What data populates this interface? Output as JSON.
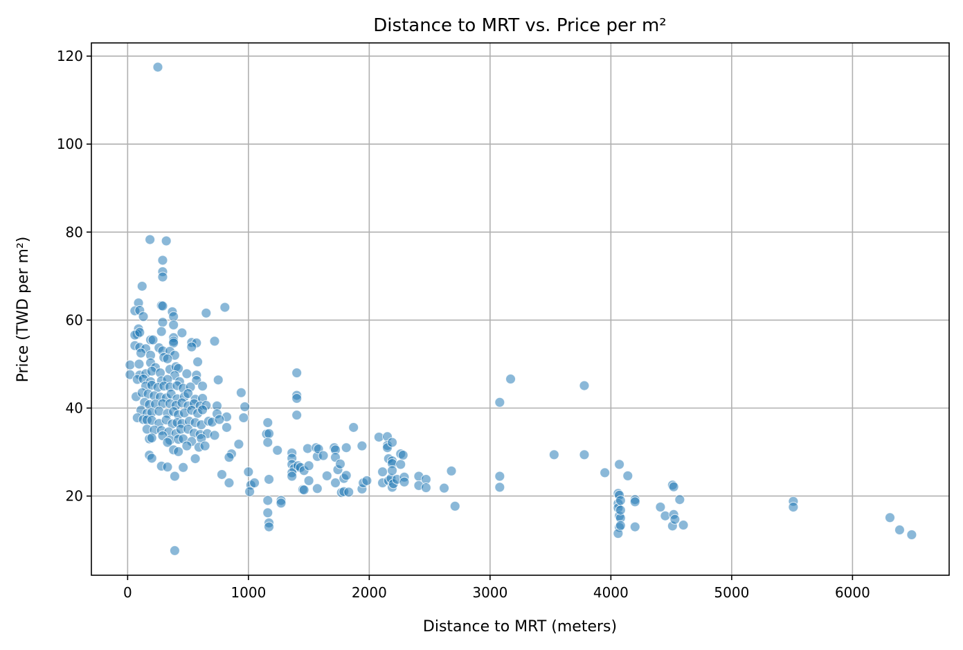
{
  "chart_data": {
    "type": "scatter",
    "title": "Distance to MRT vs. Price per m²",
    "xlabel": "Distance to MRT (meters)",
    "ylabel": "Price (TWD per m²)",
    "xlim": [
      -300,
      6800
    ],
    "ylim": [
      2,
      123
    ],
    "xticks": [
      0,
      1000,
      2000,
      3000,
      4000,
      5000,
      6000
    ],
    "yticks": [
      20,
      40,
      60,
      80,
      100,
      120
    ],
    "grid": true,
    "legend": "none",
    "colors": {
      "point": "#1f77b4",
      "grid": "#b0b0b0",
      "axis": "#000000"
    },
    "points": [
      [
        250,
        117.5
      ],
      [
        390,
        7.6
      ],
      [
        185,
        78.3
      ],
      [
        320,
        78.0
      ],
      [
        290,
        73.6
      ],
      [
        290,
        71.0
      ],
      [
        290,
        69.8
      ],
      [
        120,
        67.7
      ],
      [
        280,
        63.3
      ],
      [
        290,
        63.2
      ],
      [
        90,
        63.9
      ],
      [
        60,
        62.1
      ],
      [
        100,
        62.2
      ],
      [
        370,
        61.9
      ],
      [
        380,
        60.8
      ],
      [
        650,
        61.6
      ],
      [
        805,
        62.9
      ],
      [
        130,
        60.8
      ],
      [
        290,
        59.5
      ],
      [
        380,
        58.9
      ],
      [
        90,
        58.0
      ],
      [
        80,
        56.8
      ],
      [
        60,
        56.6
      ],
      [
        100,
        57.2
      ],
      [
        280,
        57.4
      ],
      [
        450,
        57.1
      ],
      [
        380,
        56.0
      ],
      [
        190,
        55.5
      ],
      [
        210,
        55.5
      ],
      [
        380,
        55.2
      ],
      [
        380,
        54.8
      ],
      [
        530,
        54.9
      ],
      [
        570,
        54.8
      ],
      [
        720,
        55.2
      ],
      [
        60,
        54.2
      ],
      [
        100,
        53.8
      ],
      [
        150,
        53.5
      ],
      [
        260,
        53.7
      ],
      [
        290,
        53.0
      ],
      [
        350,
        52.9
      ],
      [
        530,
        53.9
      ],
      [
        390,
        52.0
      ],
      [
        110,
        52.5
      ],
      [
        190,
        52.0
      ],
      [
        300,
        51.5
      ],
      [
        330,
        51.2
      ],
      [
        20,
        49.8
      ],
      [
        190,
        50.3
      ],
      [
        95,
        50.0
      ],
      [
        230,
        49.2
      ],
      [
        350,
        48.8
      ],
      [
        400,
        49.4
      ],
      [
        420,
        49.0
      ],
      [
        580,
        50.5
      ],
      [
        20,
        47.6
      ],
      [
        100,
        47.5
      ],
      [
        150,
        47.8
      ],
      [
        200,
        48.4
      ],
      [
        270,
        48.0
      ],
      [
        390,
        47.4
      ],
      [
        490,
        47.8
      ],
      [
        570,
        47.5
      ],
      [
        80,
        46.5
      ],
      [
        130,
        46.6
      ],
      [
        190,
        46.0
      ],
      [
        280,
        46.2
      ],
      [
        330,
        46.5
      ],
      [
        430,
        46.0
      ],
      [
        570,
        46.3
      ],
      [
        750,
        46.4
      ],
      [
        150,
        45.0
      ],
      [
        200,
        45.2
      ],
      [
        250,
        44.7
      ],
      [
        300,
        45.0
      ],
      [
        350,
        44.8
      ],
      [
        410,
        45.1
      ],
      [
        460,
        44.5
      ],
      [
        520,
        44.8
      ],
      [
        620,
        45.0
      ],
      [
        70,
        42.6
      ],
      [
        120,
        43.5
      ],
      [
        170,
        43.2
      ],
      [
        220,
        42.8
      ],
      [
        270,
        42.5
      ],
      [
        320,
        42.3
      ],
      [
        360,
        43.2
      ],
      [
        410,
        42.1
      ],
      [
        470,
        42.6
      ],
      [
        500,
        43.3
      ],
      [
        560,
        42.0
      ],
      [
        620,
        42.2
      ],
      [
        940,
        43.5
      ],
      [
        1400,
        42.9
      ],
      [
        1400,
        42.2
      ],
      [
        140,
        41.3
      ],
      [
        180,
        40.8
      ],
      [
        230,
        40.9
      ],
      [
        290,
        41.0
      ],
      [
        350,
        41.0
      ],
      [
        400,
        40.6
      ],
      [
        450,
        41.2
      ],
      [
        500,
        40.5
      ],
      [
        550,
        41.0
      ],
      [
        600,
        40.5
      ],
      [
        650,
        40.6
      ],
      [
        740,
        40.5
      ],
      [
        970,
        40.3
      ],
      [
        110,
        39.5
      ],
      [
        160,
        38.8
      ],
      [
        200,
        39.0
      ],
      [
        260,
        39.3
      ],
      [
        330,
        38.8
      ],
      [
        380,
        39.2
      ],
      [
        420,
        38.5
      ],
      [
        470,
        38.9
      ],
      [
        530,
        39.5
      ],
      [
        580,
        38.8
      ],
      [
        620,
        39.6
      ],
      [
        740,
        38.7
      ],
      [
        820,
        38.0
      ],
      [
        960,
        37.8
      ],
      [
        1400,
        38.4
      ],
      [
        80,
        37.8
      ],
      [
        130,
        37.4
      ],
      [
        160,
        37.3
      ],
      [
        200,
        37.2
      ],
      [
        260,
        36.5
      ],
      [
        320,
        37.3
      ],
      [
        370,
        36.4
      ],
      [
        410,
        36.7
      ],
      [
        450,
        36.5
      ],
      [
        510,
        37.0
      ],
      [
        560,
        36.7
      ],
      [
        610,
        36.2
      ],
      [
        670,
        37.0
      ],
      [
        700,
        36.8
      ],
      [
        760,
        37.4
      ],
      [
        820,
        35.6
      ],
      [
        1160,
        36.7
      ],
      [
        160,
        35.2
      ],
      [
        220,
        35.0
      ],
      [
        280,
        34.9
      ],
      [
        340,
        34.6
      ],
      [
        400,
        34.2
      ],
      [
        440,
        35.2
      ],
      [
        500,
        35.2
      ],
      [
        550,
        34.3
      ],
      [
        600,
        34.0
      ],
      [
        660,
        34.2
      ],
      [
        720,
        33.8
      ],
      [
        1150,
        34.1
      ],
      [
        1170,
        34.2
      ],
      [
        180,
        33.0
      ],
      [
        200,
        33.2
      ],
      [
        290,
        33.7
      ],
      [
        350,
        32.7
      ],
      [
        420,
        32.9
      ],
      [
        460,
        33.0
      ],
      [
        530,
        32.4
      ],
      [
        610,
        33.1
      ],
      [
        920,
        31.8
      ],
      [
        1160,
        32.2
      ],
      [
        330,
        32.2
      ],
      [
        380,
        30.5
      ],
      [
        420,
        30.1
      ],
      [
        490,
        31.4
      ],
      [
        590,
        31.1
      ],
      [
        640,
        31.4
      ],
      [
        860,
        29.6
      ],
      [
        1240,
        30.4
      ],
      [
        180,
        29.3
      ],
      [
        200,
        28.6
      ],
      [
        560,
        28.5
      ],
      [
        840,
        28.8
      ],
      [
        280,
        26.8
      ],
      [
        330,
        26.6
      ],
      [
        460,
        26.5
      ],
      [
        780,
        24.9
      ],
      [
        390,
        24.5
      ],
      [
        840,
        23.0
      ],
      [
        1000,
        25.5
      ],
      [
        1020,
        22.5
      ],
      [
        1050,
        23.0
      ],
      [
        1010,
        21.0
      ],
      [
        1170,
        23.8
      ],
      [
        1160,
        19.0
      ],
      [
        1160,
        16.2
      ],
      [
        1170,
        13.9
      ],
      [
        1170,
        13.0
      ],
      [
        1270,
        19.0
      ],
      [
        1270,
        18.4
      ],
      [
        1400,
        48.0
      ],
      [
        1360,
        29.8
      ],
      [
        1360,
        28.6
      ],
      [
        1360,
        27.2
      ],
      [
        1380,
        26.3
      ],
      [
        1360,
        25.3
      ],
      [
        1360,
        24.5
      ],
      [
        1410,
        26.9
      ],
      [
        1430,
        26.5
      ],
      [
        1450,
        21.5
      ],
      [
        1460,
        21.4
      ],
      [
        1460,
        25.8
      ],
      [
        1490,
        30.8
      ],
      [
        1500,
        26.9
      ],
      [
        1500,
        23.5
      ],
      [
        1560,
        31.0
      ],
      [
        1570,
        29.0
      ],
      [
        1580,
        30.7
      ],
      [
        1570,
        21.7
      ],
      [
        1620,
        29.2
      ],
      [
        1650,
        24.6
      ],
      [
        1710,
        31.0
      ],
      [
        1720,
        30.5
      ],
      [
        1720,
        28.8
      ],
      [
        1720,
        23.0
      ],
      [
        1740,
        26.0
      ],
      [
        1760,
        27.3
      ],
      [
        1770,
        20.8
      ],
      [
        1790,
        24.0
      ],
      [
        1790,
        21.0
      ],
      [
        1810,
        31.0
      ],
      [
        1810,
        24.7
      ],
      [
        1830,
        20.9
      ],
      [
        1870,
        35.6
      ],
      [
        1940,
        31.4
      ],
      [
        1940,
        21.6
      ],
      [
        1950,
        23.0
      ],
      [
        1980,
        23.5
      ],
      [
        2080,
        33.4
      ],
      [
        2110,
        25.5
      ],
      [
        2110,
        23.0
      ],
      [
        2150,
        33.5
      ],
      [
        2150,
        31.5
      ],
      [
        2150,
        31.0
      ],
      [
        2160,
        28.5
      ],
      [
        2160,
        23.5
      ],
      [
        2180,
        24.0
      ],
      [
        2190,
        32.2
      ],
      [
        2190,
        28.0
      ],
      [
        2190,
        27.4
      ],
      [
        2190,
        25.8
      ],
      [
        2190,
        22.0
      ],
      [
        2200,
        22.8
      ],
      [
        2230,
        23.8
      ],
      [
        2260,
        29.6
      ],
      [
        2260,
        27.2
      ],
      [
        2280,
        29.3
      ],
      [
        2290,
        24.3
      ],
      [
        2290,
        23.2
      ],
      [
        2410,
        24.5
      ],
      [
        2410,
        22.4
      ],
      [
        2470,
        23.8
      ],
      [
        2470,
        21.9
      ],
      [
        2620,
        21.8
      ],
      [
        2680,
        25.7
      ],
      [
        2710,
        17.7
      ],
      [
        3080,
        41.3
      ],
      [
        3170,
        46.6
      ],
      [
        3080,
        24.5
      ],
      [
        3080,
        22.0
      ],
      [
        3530,
        29.4
      ],
      [
        3780,
        45.1
      ],
      [
        3780,
        29.4
      ],
      [
        3950,
        25.3
      ],
      [
        4070,
        27.2
      ],
      [
        4060,
        20.6
      ],
      [
        4070,
        20.2
      ],
      [
        4060,
        18.3
      ],
      [
        4060,
        17.3
      ],
      [
        4070,
        15.5
      ],
      [
        4080,
        15.0
      ],
      [
        4080,
        16.8
      ],
      [
        4080,
        19.0
      ],
      [
        4070,
        12.9
      ],
      [
        4060,
        11.5
      ],
      [
        4080,
        13.3
      ],
      [
        4140,
        24.6
      ],
      [
        4200,
        19.2
      ],
      [
        4200,
        18.7
      ],
      [
        4200,
        13.0
      ],
      [
        4410,
        17.5
      ],
      [
        4450,
        15.5
      ],
      [
        4510,
        22.5
      ],
      [
        4520,
        22.1
      ],
      [
        4510,
        13.2
      ],
      [
        4520,
        15.8
      ],
      [
        4530,
        14.7
      ],
      [
        4570,
        19.2
      ],
      [
        4600,
        13.4
      ],
      [
        5510,
        18.8
      ],
      [
        5510,
        17.5
      ],
      [
        6310,
        15.1
      ],
      [
        6390,
        12.3
      ],
      [
        6490,
        11.2
      ]
    ]
  }
}
